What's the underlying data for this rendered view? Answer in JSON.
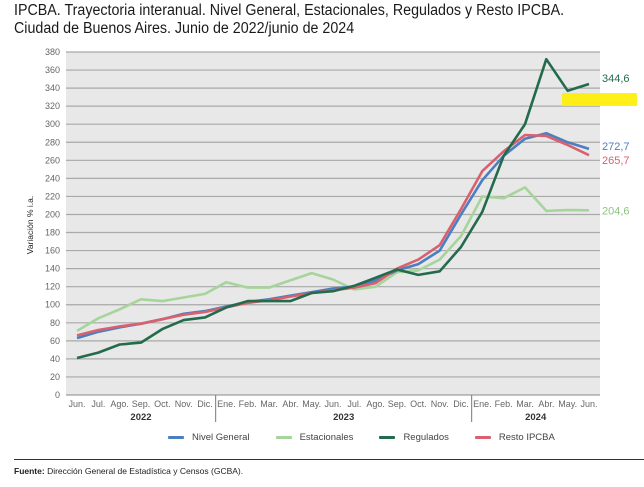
{
  "title": "IPCBA. Trayectoria interanual. Nivel General, Estacionales, Regulados y Resto IPCBA. Ciudad de Buenos Aires. Junio de 2022/junio de 2024",
  "source": {
    "label": "Fuente:",
    "text": "Dirección General de Estadística y Censos (GCBA)."
  },
  "highlight_color": "#ffee00",
  "chart_data": {
    "type": "line",
    "title": "IPCBA. Trayectoria interanual. Nivel General, Estacionales, Regulados y Resto IPCBA. Ciudad de Buenos Aires. Junio de 2022/junio de 2024",
    "xlabel": "",
    "ylabel": "Variación % i.a.",
    "ylim": [
      0,
      380
    ],
    "yticks": [
      0,
      20,
      40,
      60,
      80,
      100,
      120,
      140,
      160,
      180,
      200,
      220,
      240,
      260,
      280,
      300,
      320,
      340,
      360,
      380
    ],
    "grid": true,
    "legend_position": "bottom",
    "x": [
      "Jun.",
      "Jul.",
      "Ago.",
      "Sep.",
      "Oct.",
      "Nov.",
      "Dic.",
      "Ene.",
      "Feb.",
      "Mar.",
      "Abr.",
      "May.",
      "Jun.",
      "Jul.",
      "Ago.",
      "Sep.",
      "Oct.",
      "Nov.",
      "Dic.",
      "Ene.",
      "Feb.",
      "Mar.",
      "Abr.",
      "May.",
      "Jun."
    ],
    "years": [
      {
        "label": "2022",
        "start": 0,
        "end": 6
      },
      {
        "label": "2023",
        "start": 7,
        "end": 18
      },
      {
        "label": "2024",
        "start": 19,
        "end": 24
      }
    ],
    "series": [
      {
        "name": "Nivel General",
        "color": "#4a7fc1",
        "end_label": "272,7",
        "values": [
          63,
          70,
          75,
          79,
          84,
          90,
          93,
          98,
          103,
          106,
          110,
          114,
          118,
          120,
          127,
          138,
          145,
          160,
          200,
          238,
          265,
          284,
          290,
          280,
          272.7
        ]
      },
      {
        "name": "Estacionales",
        "color": "#a6d49a",
        "end_label": "204,6",
        "values": [
          71,
          85,
          95,
          106,
          104,
          108,
          112,
          125,
          119,
          119,
          127,
          135,
          128,
          117,
          120,
          136,
          138,
          150,
          176,
          220,
          218,
          230,
          204,
          205,
          204.6
        ]
      },
      {
        "name": "Regulados",
        "color": "#236b4b",
        "end_label": "344,6",
        "values": [
          41,
          47,
          56,
          58,
          73,
          83,
          86,
          97,
          104,
          104,
          104,
          113,
          115,
          121,
          130,
          139,
          133,
          137,
          164,
          203,
          265,
          300,
          372,
          337,
          344.6
        ]
      },
      {
        "name": "Resto IPCBA",
        "color": "#d9606e",
        "end_label": "265,7",
        "values": [
          66,
          72,
          76,
          79,
          84,
          89,
          92,
          97,
          102,
          105,
          109,
          113,
          116,
          119,
          124,
          140,
          150,
          166,
          206,
          248,
          270,
          288,
          287,
          277,
          265.7
        ]
      }
    ]
  }
}
